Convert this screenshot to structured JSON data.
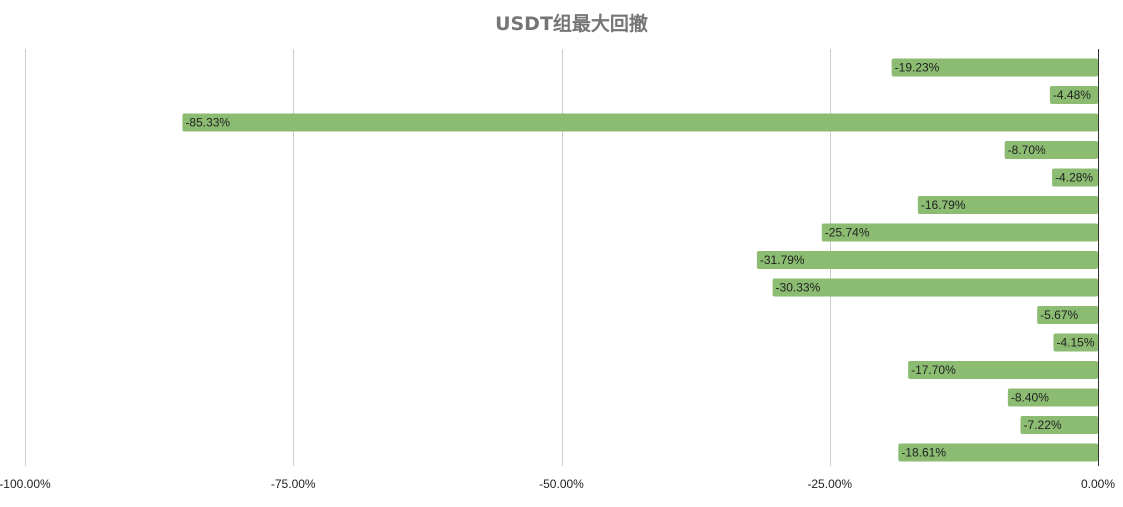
{
  "chart_data": {
    "type": "bar",
    "orientation": "horizontal",
    "title": "USDT组最大回撤",
    "values": [
      -19.23,
      -4.48,
      -85.33,
      -8.7,
      -4.28,
      -16.79,
      -25.74,
      -31.79,
      -30.33,
      -5.67,
      -4.15,
      -17.7,
      -8.4,
      -7.22,
      -18.61
    ],
    "data_labels": [
      "-19.23%",
      "-4.48%",
      "-85.33%",
      "-8.70%",
      "-4.28%",
      "-16.79%",
      "-25.74%",
      "-31.79%",
      "-30.33%",
      "-5.67%",
      "-4.15%",
      "-17.70%",
      "-8.40%",
      "-7.22%",
      "-18.61%"
    ],
    "xlim": [
      -100,
      0
    ],
    "x_ticks": [
      -100,
      -75,
      -50,
      -25,
      0
    ],
    "x_tick_labels": [
      "-100.00%",
      "-75.00%",
      "-50.00%",
      "-25.00%",
      "0.00%"
    ],
    "grid": true,
    "legend": "none",
    "bar_color": "#8bbc72"
  }
}
